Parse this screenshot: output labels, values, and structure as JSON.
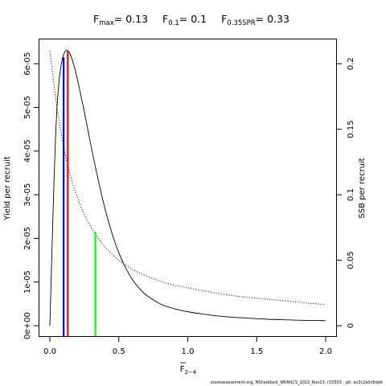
{
  "title": {
    "fmax_label": "F",
    "fmax_sub": "max",
    "fmax_value": "= 0.13",
    "f01_label": "F",
    "f01_sub": "0.1",
    "f01_value": "= 0.1",
    "fspr_label": "F",
    "fspr_sub": "0.35SPR",
    "fspr_value": "= 0.33"
  },
  "footer": "stockassessment.org, NShaddock_WKNSCS_2022_Run13, r15503 , git: ec2c2a0c6dde",
  "colors": {
    "fmax": "#ff0000",
    "f01": "#0000ff",
    "fspr": "#00ff00",
    "curves": "#000000"
  },
  "chart_data": {
    "type": "line",
    "xlabel_main": "F",
    "xlabel_sub": "2−4",
    "ylabel_left": "Yield per recruit",
    "ylabel_right": "SSB per recruit",
    "xlim": [
      0,
      2
    ],
    "ylim_left": [
      0,
      6.3e-05
    ],
    "ylim_right": [
      0,
      0.21
    ],
    "x_ticks": [
      "0.0",
      "0.5",
      "1.0",
      "1.5",
      "2.0"
    ],
    "x_tick_values": [
      0,
      0.5,
      1.0,
      1.5,
      2.0
    ],
    "y_left_ticks": [
      "0e+00",
      "1e-05",
      "2e-05",
      "3e-05",
      "4e-05",
      "5e-05",
      "6e-05"
    ],
    "y_left_tick_values": [
      0,
      1e-05,
      2e-05,
      3e-05,
      4e-05,
      5e-05,
      6e-05
    ],
    "y_right_ticks": [
      "0",
      "0.05",
      "0.1",
      "0.15",
      "0.2"
    ],
    "y_right_tick_values": [
      0,
      0.05,
      0.1,
      0.15,
      0.2
    ],
    "grid": false,
    "series": [
      {
        "style": "solid",
        "axis": "left",
        "x": [
          0,
          0.03,
          0.05,
          0.07,
          0.09,
          0.11,
          0.13,
          0.15,
          0.18,
          0.21,
          0.25,
          0.3,
          0.35,
          0.4,
          0.45,
          0.5,
          0.55,
          0.6,
          0.65,
          0.7,
          0.8,
          0.9,
          1.0,
          1.1,
          1.2,
          1.3,
          1.4,
          1.5,
          1.6,
          1.7,
          1.8,
          1.9,
          2.0
        ],
        "y": [
          0,
          3.3e-05,
          4.9e-05,
          5.7e-05,
          6.1e-05,
          6.28e-05,
          6.3e-05,
          6.2e-05,
          5.9e-05,
          5.5e-05,
          4.9e-05,
          4.1e-05,
          3.35e-05,
          2.68e-05,
          2.12e-05,
          1.67e-05,
          1.32e-05,
          1.05e-05,
          8.5e-06,
          7e-06,
          5e-06,
          3.9e-06,
          3.2e-06,
          2.7e-06,
          2.3e-06,
          2e-06,
          1.8e-06,
          1.6e-06,
          1.45e-06,
          1.35e-06,
          1.25e-06,
          1.2e-06,
          1.15e-06
        ]
      },
      {
        "style": "dotted",
        "axis": "right",
        "x": [
          0,
          0.05,
          0.1,
          0.15,
          0.2,
          0.25,
          0.3,
          0.35,
          0.4,
          0.5,
          0.6,
          0.7,
          0.8,
          0.9,
          1.0,
          1.2,
          1.4,
          1.6,
          1.8,
          2.0
        ],
        "y": [
          0.21,
          0.168,
          0.137,
          0.114,
          0.098,
          0.085,
          0.075,
          0.067,
          0.06,
          0.05,
          0.043,
          0.038,
          0.034,
          0.031,
          0.029,
          0.025,
          0.022,
          0.02,
          0.018,
          0.016
        ]
      }
    ],
    "reference_lines": [
      {
        "name": "F0.1",
        "x": 0.1,
        "y_top": 6.15e-05,
        "color": "#0000ff"
      },
      {
        "name": "Fmax",
        "x": 0.13,
        "y_top": 6.3e-05,
        "color": "#ff0000"
      },
      {
        "name": "F0.35SPR",
        "x": 0.33,
        "y_top": 2.15e-05,
        "color": "#00ff00"
      }
    ]
  }
}
